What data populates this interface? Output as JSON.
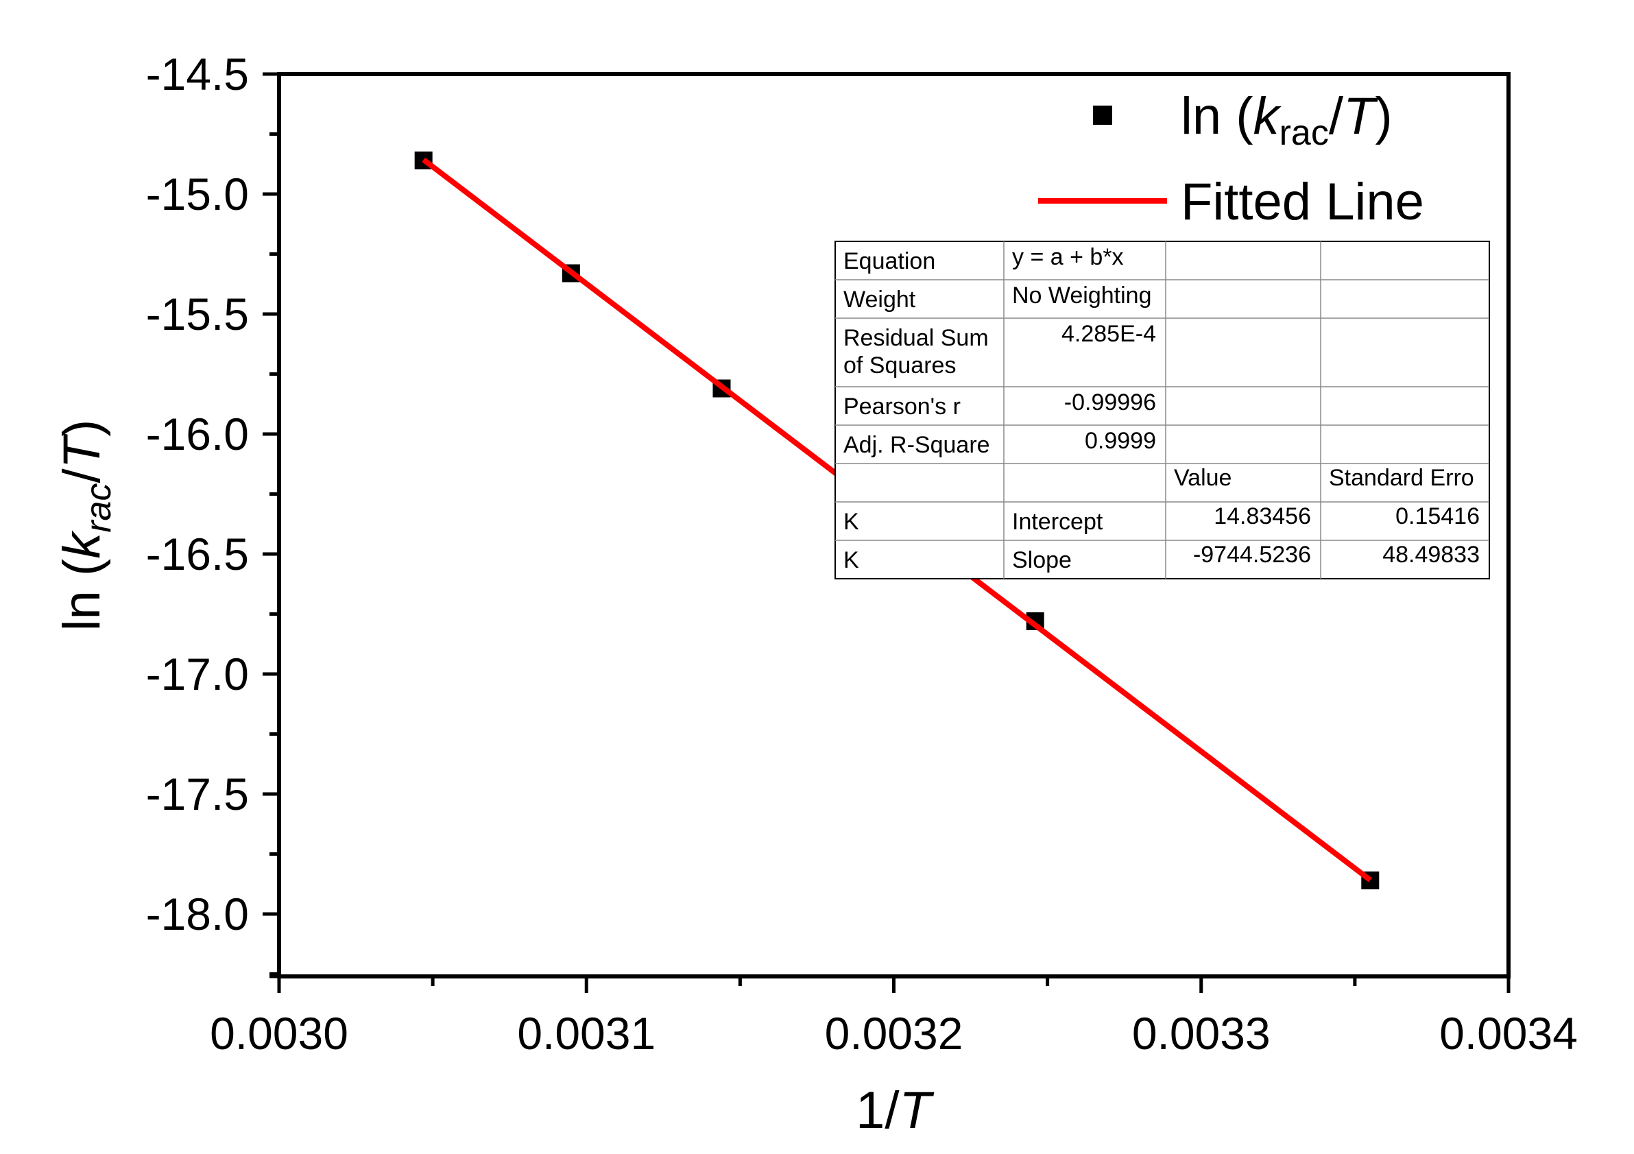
{
  "chart_data": {
    "type": "scatter",
    "xlabel": "1/T",
    "ylabel": "ln (k_rac/T)",
    "xlim": [
      0.003,
      0.0034
    ],
    "ylim": [
      -18.25,
      -14.5
    ],
    "xticks": [
      "0.0030",
      "0.0031",
      "0.0032",
      "0.0033",
      "0.0034"
    ],
    "yticks": [
      "-14.5",
      "-15.0",
      "-15.5",
      "-16.0",
      "-16.5",
      "-17.0",
      "-17.5",
      "-18.0"
    ],
    "series": [
      {
        "name": "ln (k_rac/T)",
        "kind": "points",
        "color": "#000000",
        "x": [
          0.003047,
          0.003095,
          0.003144,
          0.003246,
          0.003355
        ],
        "y": [
          -14.86,
          -15.33,
          -15.81,
          -16.78,
          -17.86
        ]
      },
      {
        "name": "Fitted Line",
        "kind": "line",
        "color": "#ff0000",
        "intercept": 14.83456,
        "slope": -9744.5236,
        "x": [
          0.003047,
          0.003355
        ]
      }
    ],
    "legend": {
      "position": "top-right",
      "entries": [
        {
          "label_main": "ln (",
          "label_k": "k",
          "label_sub": "rac",
          "label_slash": "/",
          "label_T": "T",
          "label_close": ")"
        },
        {
          "label": "Fitted Line"
        }
      ]
    },
    "xlabel_parts": {
      "prefix": "1/",
      "italic": "T"
    },
    "ylabel_parts": {
      "prefix": "ln (",
      "k": "k",
      "sub": "rac",
      "slash": "/",
      "T": "T",
      "close": ")"
    },
    "fit_table": {
      "rows": [
        [
          "Equation",
          "y = a + b*x",
          "",
          ""
        ],
        [
          "Weight",
          "No Weighting",
          "",
          ""
        ],
        [
          "Residual Sum\nof Squares",
          "4.285E-4",
          "",
          ""
        ],
        [
          "Pearson's r",
          "-0.99996",
          "",
          ""
        ],
        [
          "Adj. R-Square",
          "0.9999",
          "",
          ""
        ],
        [
          "",
          "",
          "Value",
          "Standard Erro"
        ],
        [
          "K",
          "Intercept",
          "14.83456",
          "0.15416"
        ],
        [
          "K",
          "Slope",
          "-9744.5236",
          "48.49833"
        ]
      ]
    }
  }
}
